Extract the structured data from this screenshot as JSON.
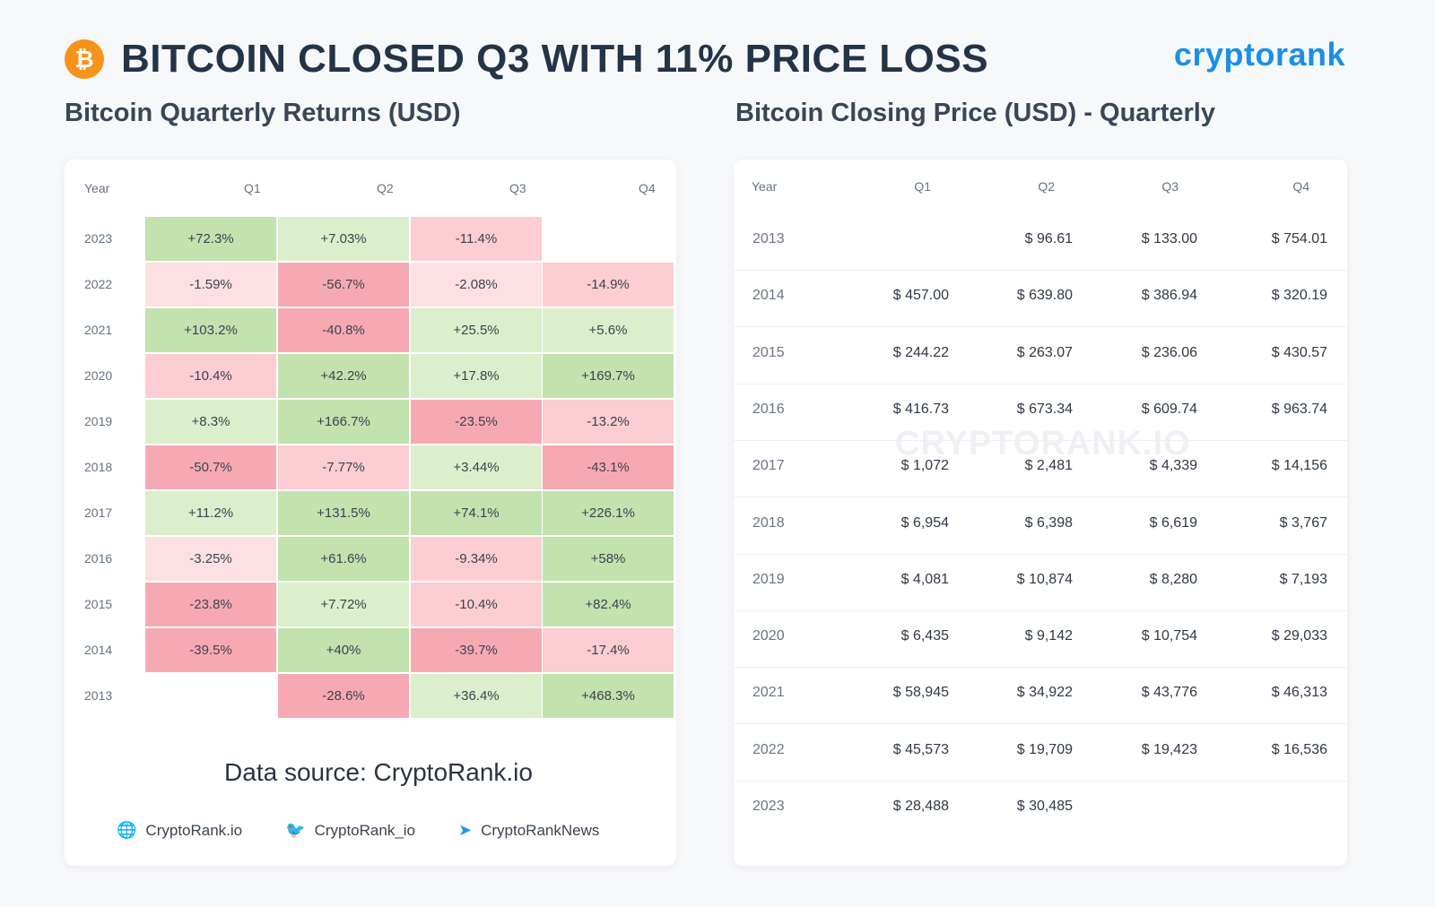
{
  "header": {
    "logo_glyph": "₿",
    "title": "BITCOIN CLOSED Q3 WITH 11% PRICE LOSS",
    "brand": "cryptorank"
  },
  "left_title": "Bitcoin Quarterly Returns (USD)",
  "right_title": "Bitcoin Closing Price (USD) - Quarterly",
  "colors": {
    "strong_green": "#c2e2ae",
    "light_green": "#dcefcc",
    "light_red": "#fde0e3",
    "mid_red": "#fccdd3",
    "strong_red": "#f7a9b3"
  },
  "chart_data": [
    {
      "type": "heatmap",
      "title": "Bitcoin Quarterly Returns (USD)",
      "column_headers": [
        "Year",
        "Q1",
        "Q2",
        "Q3",
        "Q4"
      ],
      "rows": [
        {
          "year": "2023",
          "values": [
            "+72.3%",
            "+7.03%",
            "-11.4%",
            ""
          ]
        },
        {
          "year": "2022",
          "values": [
            "-1.59%",
            "-56.7%",
            "-2.08%",
            "-14.9%"
          ]
        },
        {
          "year": "2021",
          "values": [
            "+103.2%",
            "-40.8%",
            "+25.5%",
            "+5.6%"
          ]
        },
        {
          "year": "2020",
          "values": [
            "-10.4%",
            "+42.2%",
            "+17.8%",
            "+169.7%"
          ]
        },
        {
          "year": "2019",
          "values": [
            "+8.3%",
            "+166.7%",
            "-23.5%",
            "-13.2%"
          ]
        },
        {
          "year": "2018",
          "values": [
            "-50.7%",
            "-7.77%",
            "+3.44%",
            "-43.1%"
          ]
        },
        {
          "year": "2017",
          "values": [
            "+11.2%",
            "+131.5%",
            "+74.1%",
            "+226.1%"
          ]
        },
        {
          "year": "2016",
          "values": [
            "-3.25%",
            "+61.6%",
            "-9.34%",
            "+58%"
          ]
        },
        {
          "year": "2015",
          "values": [
            "-23.8%",
            "+7.72%",
            "-10.4%",
            "+82.4%"
          ]
        },
        {
          "year": "2014",
          "values": [
            "-39.5%",
            "+40%",
            "-39.7%",
            "-17.4%"
          ]
        },
        {
          "year": "2013",
          "values": [
            "",
            "-28.6%",
            "+36.4%",
            "+468.3%"
          ]
        }
      ]
    },
    {
      "type": "table",
      "title": "Bitcoin Closing Price (USD) - Quarterly",
      "column_headers": [
        "Year",
        "Q1",
        "Q2",
        "Q3",
        "Q4"
      ],
      "rows": [
        {
          "year": "2013",
          "values": [
            "",
            "$ 96.61",
            "$ 133.00",
            "$ 754.01"
          ]
        },
        {
          "year": "2014",
          "values": [
            "$ 457.00",
            "$ 639.80",
            "$ 386.94",
            "$ 320.19"
          ]
        },
        {
          "year": "2015",
          "values": [
            "$ 244.22",
            "$ 263.07",
            "$ 236.06",
            "$ 430.57"
          ]
        },
        {
          "year": "2016",
          "values": [
            "$ 416.73",
            "$ 673.34",
            "$ 609.74",
            "$ 963.74"
          ]
        },
        {
          "year": "2017",
          "values": [
            "$ 1,072",
            "$ 2,481",
            "$ 4,339",
            "$ 14,156"
          ]
        },
        {
          "year": "2018",
          "values": [
            "$ 6,954",
            "$ 6,398",
            "$ 6,619",
            "$ 3,767"
          ]
        },
        {
          "year": "2019",
          "values": [
            "$ 4,081",
            "$ 10,874",
            "$ 8,280",
            "$ 7,193"
          ]
        },
        {
          "year": "2020",
          "values": [
            "$ 6,435",
            "$ 9,142",
            "$ 10,754",
            "$ 29,033"
          ]
        },
        {
          "year": "2021",
          "values": [
            "$ 58,945",
            "$ 34,922",
            "$ 43,776",
            "$ 46,313"
          ]
        },
        {
          "year": "2022",
          "values": [
            "$ 45,573",
            "$ 19,709",
            "$ 19,423",
            "$ 16,536"
          ]
        },
        {
          "year": "2023",
          "values": [
            "$ 28,488",
            "$ 30,485",
            "",
            ""
          ]
        }
      ]
    }
  ],
  "source": "Data source: CryptoRank.io",
  "watermark": "CRYPTORANK.IO",
  "socials": [
    {
      "icon": "globe-icon",
      "glyph": "🌐",
      "label": "CryptoRank.io"
    },
    {
      "icon": "twitter-icon",
      "glyph": "🐦",
      "label": "CryptoRank_io"
    },
    {
      "icon": "telegram-icon",
      "glyph": "➤",
      "label": "CryptoRankNews"
    }
  ]
}
